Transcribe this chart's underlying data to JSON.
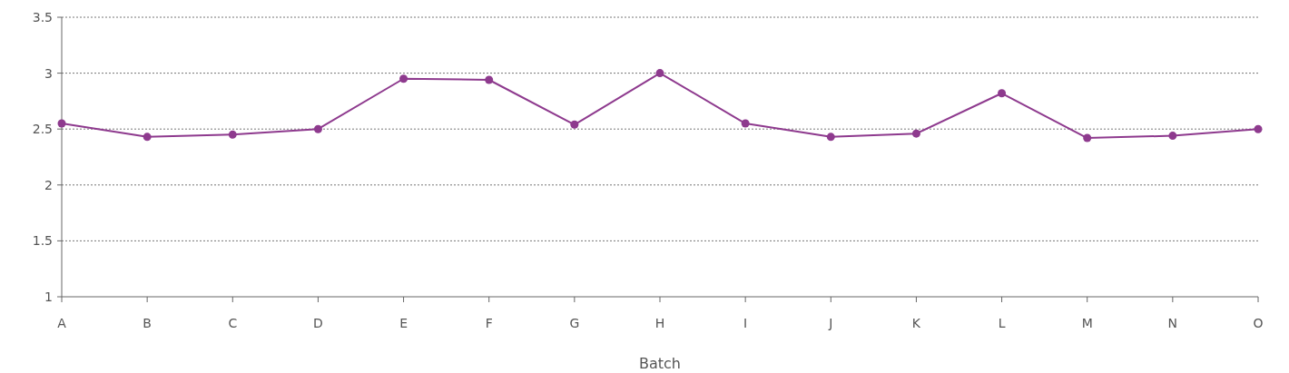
{
  "chart_data": {
    "type": "line",
    "xlabel": "Batch",
    "categories": [
      "A",
      "B",
      "C",
      "D",
      "E",
      "F",
      "G",
      "H",
      "I",
      "J",
      "K",
      "L",
      "M",
      "N",
      "O"
    ],
    "series": [
      {
        "color": "#8e3a8e",
        "values": [
          2.55,
          2.43,
          2.45,
          2.5,
          2.95,
          2.94,
          2.54,
          3.0,
          2.55,
          2.43,
          2.46,
          2.82,
          2.42,
          2.44,
          2.5
        ]
      }
    ],
    "ylim": [
      1,
      3.5
    ],
    "yticks": [
      1,
      1.5,
      2,
      2.5,
      3,
      3.5
    ],
    "grid": "y",
    "marker": "circle",
    "line_style": "solid"
  }
}
